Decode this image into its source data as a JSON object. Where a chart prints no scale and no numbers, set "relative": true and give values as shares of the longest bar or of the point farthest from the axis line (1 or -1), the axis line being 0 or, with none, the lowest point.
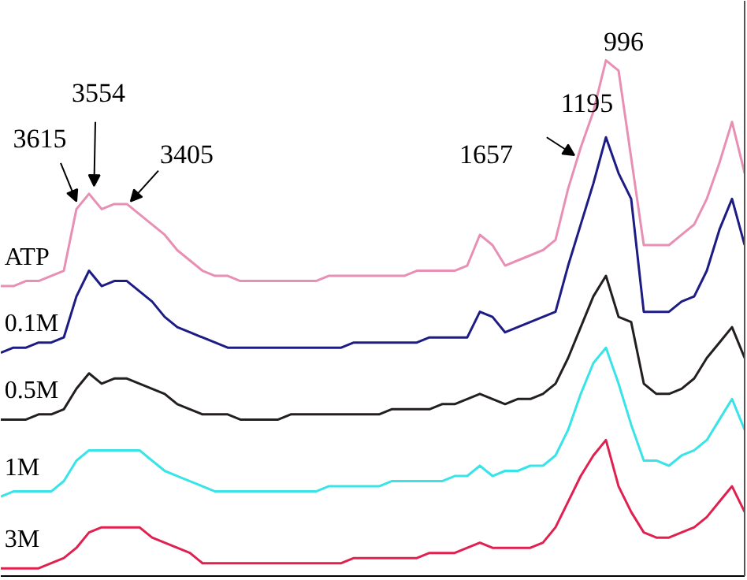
{
  "chart_data": {
    "type": "line",
    "relative": true,
    "grid": false,
    "categories": [
      null,
      null,
      null,
      null,
      null,
      null,
      null,
      null,
      null,
      null,
      null,
      null,
      null,
      null,
      null,
      null,
      null,
      null,
      null,
      null,
      null,
      null,
      null,
      null,
      null,
      null,
      null,
      null,
      null,
      null,
      null,
      null,
      null,
      null,
      null,
      null,
      null,
      null,
      null,
      null,
      null,
      null,
      null,
      null,
      null,
      null,
      null,
      null,
      null,
      null,
      null,
      null,
      null,
      null,
      null,
      null,
      null,
      null,
      null,
      null
    ],
    "series": [
      {
        "name": "ATP",
        "color": "#e890b4",
        "values": [
          0.56,
          0.56,
          0.57,
          0.57,
          0.58,
          0.59,
          0.71,
          0.74,
          0.71,
          0.72,
          0.72,
          0.7,
          0.68,
          0.66,
          0.63,
          0.61,
          0.59,
          0.58,
          0.58,
          0.57,
          0.57,
          0.57,
          0.57,
          0.57,
          0.57,
          0.57,
          0.58,
          0.58,
          0.58,
          0.58,
          0.58,
          0.58,
          0.58,
          0.59,
          0.59,
          0.59,
          0.59,
          0.6,
          0.66,
          0.64,
          0.6,
          0.61,
          0.62,
          0.63,
          0.65,
          0.75,
          0.83,
          0.9,
          1.0,
          0.98,
          0.81,
          0.64,
          0.64,
          0.64,
          0.66,
          0.68,
          0.73,
          0.8,
          0.88,
          0.78
        ]
      },
      {
        "name": "0.1M",
        "color": "#1c1c84",
        "values": [
          0.43,
          0.44,
          0.44,
          0.45,
          0.45,
          0.46,
          0.54,
          0.59,
          0.56,
          0.57,
          0.57,
          0.55,
          0.53,
          0.5,
          0.48,
          0.47,
          0.46,
          0.45,
          0.44,
          0.44,
          0.44,
          0.44,
          0.44,
          0.44,
          0.44,
          0.44,
          0.44,
          0.44,
          0.45,
          0.45,
          0.45,
          0.45,
          0.45,
          0.45,
          0.46,
          0.46,
          0.46,
          0.46,
          0.51,
          0.5,
          0.47,
          0.48,
          0.49,
          0.5,
          0.51,
          0.6,
          0.68,
          0.76,
          0.85,
          0.78,
          0.73,
          0.51,
          0.51,
          0.51,
          0.53,
          0.54,
          0.59,
          0.67,
          0.73,
          0.64
        ]
      },
      {
        "name": "0.5M",
        "color": "#231f20",
        "values": [
          0.3,
          0.3,
          0.3,
          0.31,
          0.31,
          0.32,
          0.36,
          0.39,
          0.37,
          0.38,
          0.38,
          0.37,
          0.36,
          0.35,
          0.33,
          0.32,
          0.31,
          0.31,
          0.31,
          0.3,
          0.3,
          0.3,
          0.3,
          0.31,
          0.31,
          0.31,
          0.31,
          0.31,
          0.31,
          0.31,
          0.31,
          0.32,
          0.32,
          0.32,
          0.32,
          0.33,
          0.33,
          0.34,
          0.35,
          0.34,
          0.33,
          0.34,
          0.34,
          0.35,
          0.37,
          0.42,
          0.48,
          0.54,
          0.58,
          0.5,
          0.49,
          0.37,
          0.35,
          0.35,
          0.36,
          0.38,
          0.42,
          0.45,
          0.48,
          0.42
        ]
      },
      {
        "name": "1M",
        "color": "#38e4e8",
        "values": [
          0.15,
          0.16,
          0.16,
          0.16,
          0.16,
          0.18,
          0.22,
          0.24,
          0.24,
          0.24,
          0.24,
          0.24,
          0.22,
          0.2,
          0.19,
          0.18,
          0.17,
          0.16,
          0.16,
          0.16,
          0.16,
          0.16,
          0.16,
          0.16,
          0.16,
          0.16,
          0.17,
          0.17,
          0.17,
          0.17,
          0.17,
          0.18,
          0.18,
          0.18,
          0.18,
          0.18,
          0.19,
          0.19,
          0.21,
          0.19,
          0.2,
          0.2,
          0.21,
          0.21,
          0.23,
          0.28,
          0.35,
          0.41,
          0.44,
          0.37,
          0.29,
          0.22,
          0.22,
          0.21,
          0.23,
          0.24,
          0.26,
          0.3,
          0.34,
          0.28
        ]
      },
      {
        "name": "3M",
        "color": "#e0204f",
        "values": [
          0.01,
          0.01,
          0.01,
          0.01,
          0.02,
          0.03,
          0.05,
          0.08,
          0.09,
          0.09,
          0.09,
          0.09,
          0.07,
          0.06,
          0.05,
          0.04,
          0.02,
          0.02,
          0.02,
          0.02,
          0.02,
          0.02,
          0.02,
          0.02,
          0.02,
          0.02,
          0.02,
          0.02,
          0.03,
          0.03,
          0.03,
          0.03,
          0.03,
          0.03,
          0.04,
          0.04,
          0.04,
          0.05,
          0.06,
          0.05,
          0.05,
          0.05,
          0.05,
          0.06,
          0.09,
          0.14,
          0.19,
          0.23,
          0.26,
          0.17,
          0.12,
          0.08,
          0.07,
          0.07,
          0.08,
          0.09,
          0.11,
          0.14,
          0.17,
          0.12
        ]
      }
    ],
    "annotations": [
      "3615",
      "3554",
      "3405",
      "1657",
      "1195",
      "996"
    ]
  }
}
